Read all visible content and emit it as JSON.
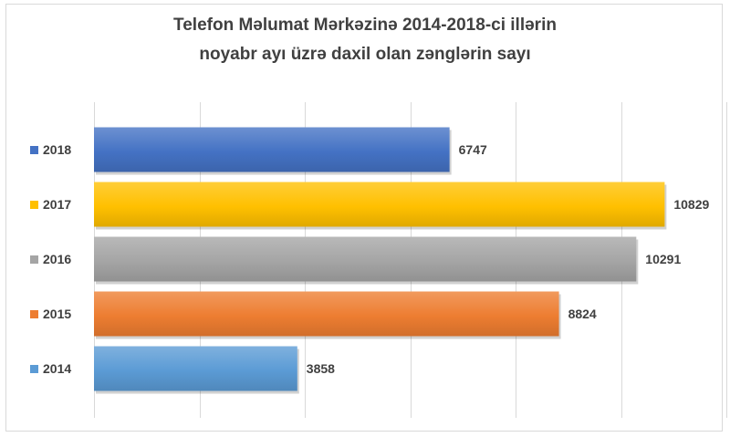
{
  "chart_data": {
    "type": "bar",
    "orientation": "horizontal",
    "title": [
      "Telefon Məlumat Mərkəzinə 2014-2018-ci illərin",
      "noyabr ayı üzrə daxil olan zənglərin sayı"
    ],
    "categories": [
      "2018",
      "2017",
      "2016",
      "2015",
      "2014"
    ],
    "values": [
      6747,
      10829,
      10291,
      8824,
      3858
    ],
    "colors": [
      "#4472c4",
      "#ffc000",
      "#a5a5a5",
      "#ed7d31",
      "#5b9bd5"
    ],
    "xlim": [
      0,
      12000
    ],
    "gridlines": true,
    "legend_position": "left"
  }
}
